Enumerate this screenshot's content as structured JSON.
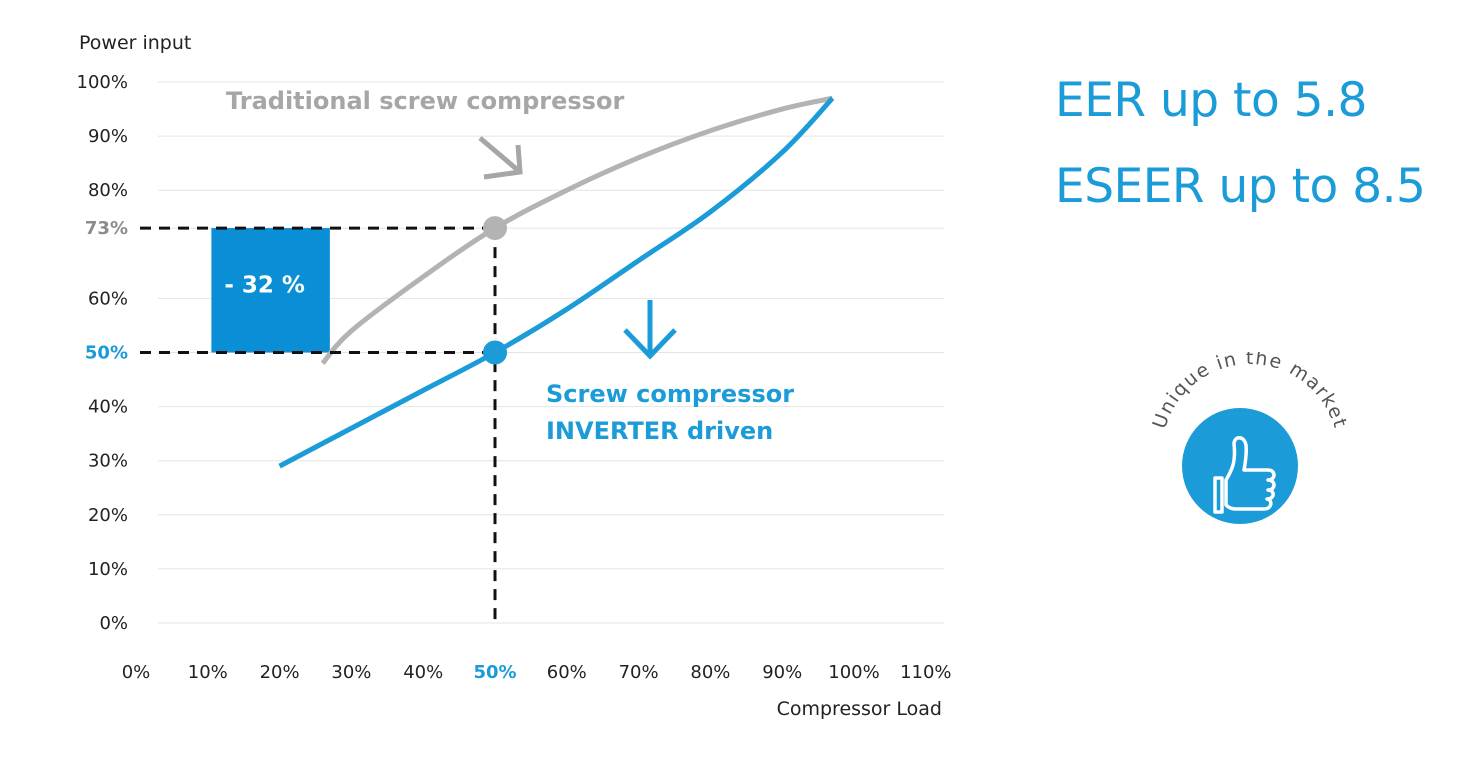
{
  "chart_data": {
    "type": "line",
    "ylabel": "Power input",
    "xlabel": "Compressor Load",
    "x_ticks": [
      "0%",
      "10%",
      "20%",
      "30%",
      "40%",
      "50%",
      "60%",
      "70%",
      "80%",
      "90%",
      "100%",
      "110%"
    ],
    "y_ticks": [
      "0%",
      "10%",
      "20%",
      "30%",
      "40%",
      "50%",
      "60%",
      "73%",
      "80%",
      "90%",
      "100%"
    ],
    "xlim": [
      0,
      110
    ],
    "ylim": [
      0,
      100
    ],
    "highlight_x": "50%",
    "grid": true,
    "series": [
      {
        "name": "Traditional screw compressor",
        "color": "#b3b3b3",
        "x": [
          26,
          30,
          40,
          50,
          60,
          70,
          80,
          90,
          97
        ],
        "y": [
          48,
          54,
          64,
          73,
          80,
          86,
          91,
          95,
          97
        ]
      },
      {
        "name": "Screw compressor INVERTER driven",
        "color": "#1b9bd7",
        "x": [
          20,
          30,
          40,
          50,
          60,
          70,
          80,
          90,
          97
        ],
        "y": [
          29,
          36,
          43,
          50,
          58,
          67,
          76,
          87,
          97
        ]
      }
    ],
    "markers": [
      {
        "x": 50,
        "y": 73,
        "color": "#b3b3b3",
        "label": "73%"
      },
      {
        "x": 50,
        "y": 50,
        "color": "#1b9bd7",
        "label": "50%"
      }
    ],
    "annotations": [
      {
        "text": "- 32 %",
        "type": "reduction_box",
        "x_range": [
          10.5,
          27
        ],
        "y_range": [
          50,
          73
        ],
        "color": "#0a8fd6"
      }
    ],
    "arrow_label_lines": [
      "Screw compressor",
      "INVERTER driven"
    ]
  },
  "headlines": [
    "EER up to 5.8",
    "ESEER up to 8.5"
  ],
  "badge": {
    "text": "Unique in the market",
    "icon": "thumbs-up-icon",
    "color": "#1b9bd7"
  }
}
